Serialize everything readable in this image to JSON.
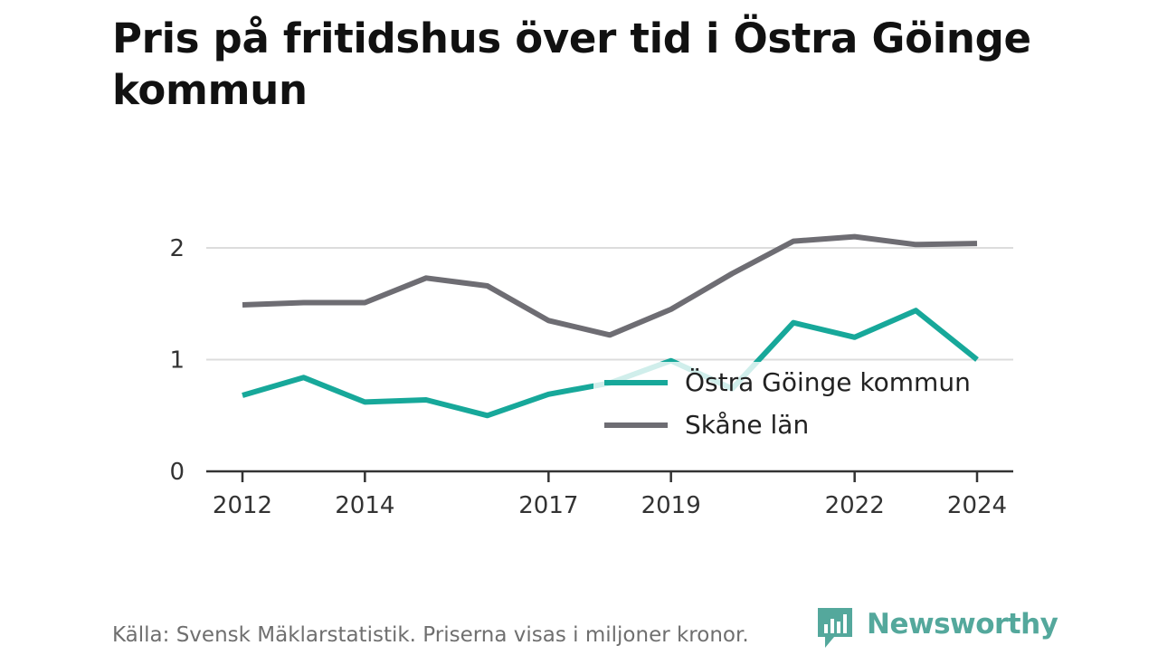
{
  "chart_data": {
    "type": "line",
    "title": "Pris på fritidshus över tid i Östra Göinge kommun",
    "x": [
      2012,
      2013,
      2014,
      2015,
      2016,
      2017,
      2018,
      2019,
      2020,
      2021,
      2022,
      2023,
      2024
    ],
    "x_ticks": [
      "2012",
      "2014",
      "2017",
      "2019",
      "2022",
      "2024"
    ],
    "y_ticks": [
      "0",
      "1",
      "2"
    ],
    "ylim": [
      0,
      2.2
    ],
    "grid": true,
    "legend_position": "lower-right",
    "series": [
      {
        "name": "Östra Göinge kommun",
        "color": "#17a89a",
        "values": [
          0.68,
          0.84,
          0.62,
          0.64,
          0.5,
          0.69,
          0.79,
          0.99,
          0.74,
          1.33,
          1.2,
          1.44,
          1.0
        ]
      },
      {
        "name": "Skåne län",
        "color": "#6e6d73",
        "values": [
          1.49,
          1.51,
          1.51,
          1.73,
          1.66,
          1.35,
          1.22,
          1.45,
          1.77,
          2.06,
          2.1,
          2.03,
          2.04
        ]
      }
    ]
  },
  "footer": {
    "source": "Källa: Svensk Mäklarstatistik. Priserna visas i miljoner kronor."
  },
  "brand": {
    "name": "Newsworthy",
    "color": "#54a89c",
    "icon": "newsworthy-logo-icon"
  }
}
